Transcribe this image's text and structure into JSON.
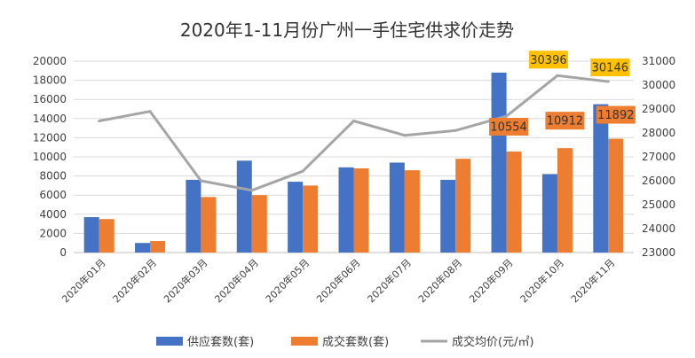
{
  "chart_data": {
    "type": "bar",
    "title": "2020年1-11月份广州一手住宅供求价走势",
    "categories": [
      "2020年01月",
      "2020年02月",
      "2020年03月",
      "2020年04月",
      "2020年05月",
      "2020年06月",
      "2020年07月",
      "2020年08月",
      "2020年09月",
      "2020年10月",
      "2020年11月"
    ],
    "series": [
      {
        "name": "供应套数(套)",
        "type": "bar",
        "axis": "left",
        "color": "#4472C4",
        "values": [
          3700,
          1000,
          7600,
          9600,
          7400,
          8900,
          9400,
          7600,
          18800,
          8200,
          15500
        ]
      },
      {
        "name": "成交套数(套)",
        "type": "bar",
        "axis": "left",
        "color": "#ED7D31",
        "values": [
          3500,
          1200,
          5800,
          6000,
          7000,
          8800,
          8600,
          9800,
          10554,
          10912,
          11892
        ]
      },
      {
        "name": "成交均价(元/㎡)",
        "type": "line",
        "axis": "right",
        "color": "#A5A5A5",
        "values": [
          28500,
          28900,
          26000,
          25600,
          26400,
          28500,
          27900,
          28100,
          28700,
          30396,
          30146
        ]
      }
    ],
    "y_left": {
      "min": 0,
      "max": 20000,
      "step": 2000,
      "ticks": [
        "0",
        "2000",
        "4000",
        "6000",
        "8000",
        "10000",
        "12000",
        "14000",
        "16000",
        "18000",
        "20000"
      ]
    },
    "y_right": {
      "min": 23000,
      "max": 31000,
      "step": 1000,
      "ticks": [
        "23000",
        "24000",
        "25000",
        "26000",
        "27000",
        "28000",
        "29000",
        "30000",
        "31000"
      ]
    },
    "callouts": [
      {
        "label": "10554",
        "series": 1,
        "index": 8,
        "fill": "#ED7D31"
      },
      {
        "label": "10912",
        "series": 1,
        "index": 9,
        "fill": "#ED7D31"
      },
      {
        "label": "11892",
        "series": 1,
        "index": 10,
        "fill": "#ED7D31"
      },
      {
        "label": "30396",
        "series": 2,
        "index": 9,
        "fill": "#FFC000"
      },
      {
        "label": "30146",
        "series": 2,
        "index": 10,
        "fill": "#FFC000"
      }
    ],
    "grid": true,
    "legend": "bottom"
  }
}
